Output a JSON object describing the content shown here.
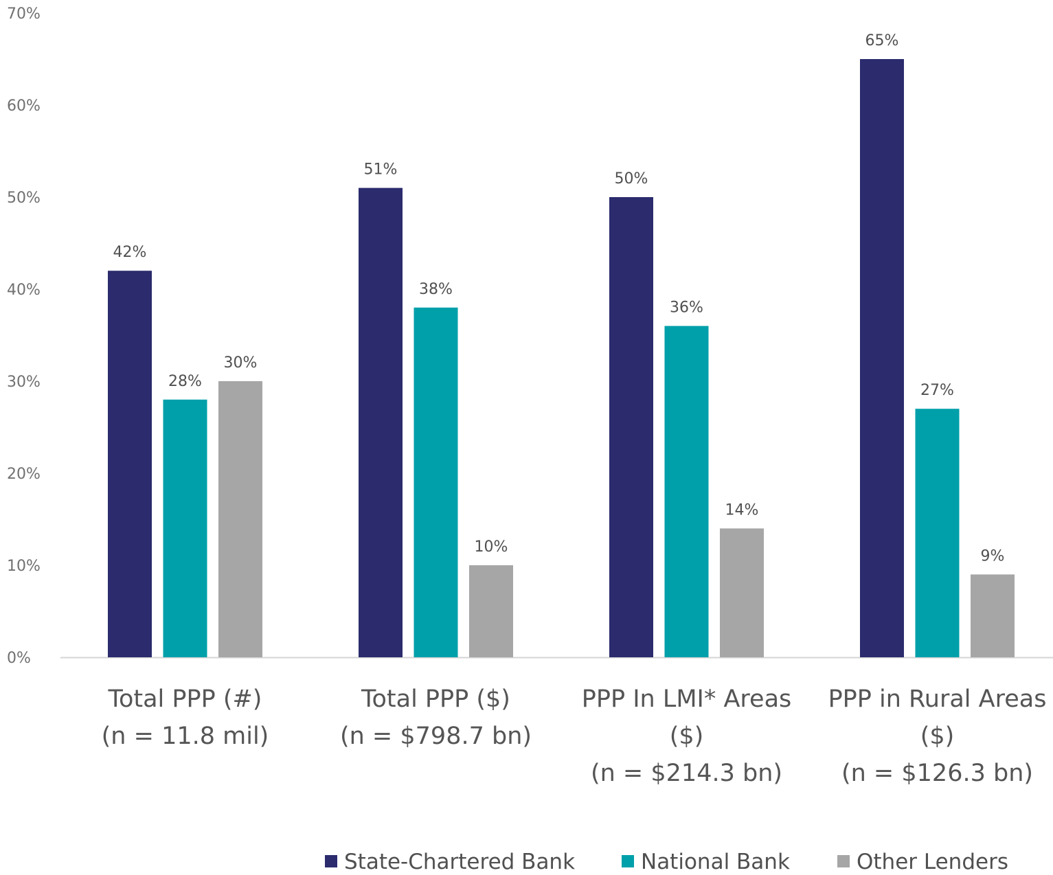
{
  "chart_data": {
    "type": "bar",
    "title": "",
    "xlabel": "",
    "ylabel": "",
    "ylim": [
      0,
      70
    ],
    "yticks": [
      "0%",
      "10%",
      "20%",
      "30%",
      "40%",
      "50%",
      "60%",
      "70%"
    ],
    "ytick_values": [
      0,
      10,
      20,
      30,
      40,
      50,
      60,
      70
    ],
    "grid": false,
    "legend_position": "bottom-right",
    "categories": [
      [
        "Total PPP (#)",
        "(n = 11.8 mil)"
      ],
      [
        "Total PPP ($)",
        "(n = $798.7 bn)"
      ],
      [
        "PPP In LMI* Areas",
        "($)",
        "(n = $214.3 bn)"
      ],
      [
        "PPP in Rural Areas",
        "($)",
        "(n = $126.3 bn)"
      ]
    ],
    "series": [
      {
        "name": "State-Chartered Bank",
        "color": "#2b2b6e",
        "values": [
          42,
          51,
          50,
          65
        ],
        "labels": [
          "42%",
          "51%",
          "50%",
          "65%"
        ]
      },
      {
        "name": "National Bank",
        "color": "#00a0aa",
        "values": [
          28,
          38,
          36,
          27
        ],
        "labels": [
          "28%",
          "38%",
          "36%",
          "27%"
        ]
      },
      {
        "name": "Other Lenders",
        "color": "#a6a6a6",
        "values": [
          30,
          10,
          14,
          9
        ],
        "labels": [
          "30%",
          "10%",
          "14%",
          "9%"
        ]
      }
    ]
  }
}
